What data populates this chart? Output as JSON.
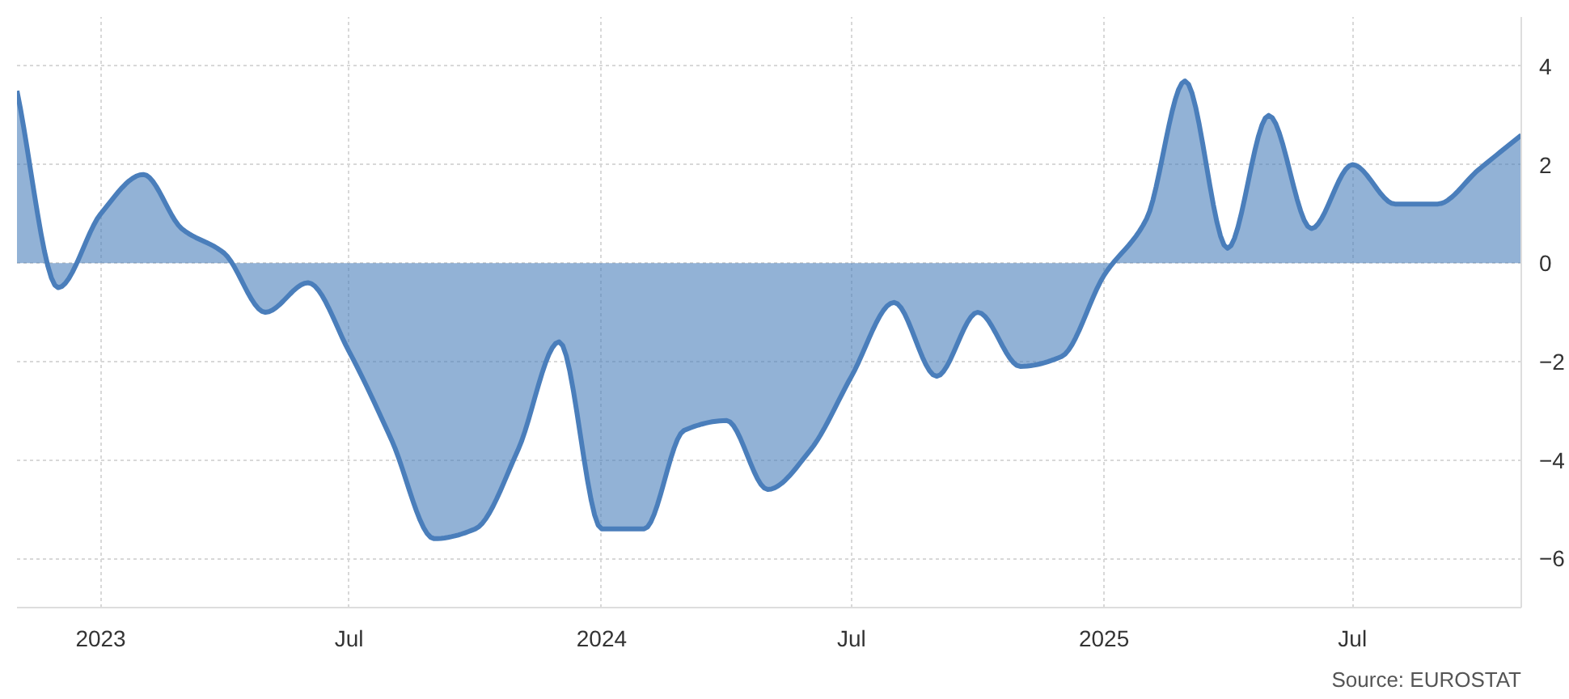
{
  "chart_data": {
    "type": "area",
    "x": [
      "2022-11",
      "2022-12",
      "2023-01",
      "2023-02",
      "2023-03",
      "2023-04",
      "2023-05",
      "2023-06",
      "2023-07",
      "2023-08",
      "2023-09",
      "2023-10",
      "2023-11",
      "2023-12",
      "2024-01",
      "2024-02",
      "2024-03",
      "2024-04",
      "2024-05",
      "2024-06",
      "2024-07",
      "2024-08",
      "2024-09",
      "2024-10",
      "2024-11",
      "2024-12",
      "2025-01",
      "2025-02",
      "2025-03",
      "2025-04",
      "2025-05",
      "2025-06",
      "2025-07",
      "2025-08",
      "2025-09",
      "2025-10",
      "2025-11"
    ],
    "series": [
      {
        "color": "#4a7ebb",
        "values": [
          3.5,
          -0.5,
          1.0,
          1.8,
          0.7,
          0.2,
          -1.0,
          -0.4,
          -1.8,
          -3.6,
          -5.6,
          -5.4,
          -3.8,
          -1.6,
          -5.4,
          -5.4,
          -3.4,
          -3.2,
          -4.6,
          -3.8,
          -2.3,
          -0.8,
          -2.3,
          -1.0,
          -2.1,
          -1.9,
          -0.25,
          0.9,
          3.7,
          0.3,
          3.0,
          0.7,
          2.0,
          1.2,
          1.2,
          1.9,
          2.6
        ]
      }
    ],
    "xlim": [
      "2022-11",
      "2025-11"
    ],
    "xticks": [
      {
        "value": "2023-01",
        "label": "2023"
      },
      {
        "value": "2023-07",
        "label": "Jul"
      },
      {
        "value": "2024-01",
        "label": "2024"
      },
      {
        "value": "2024-07",
        "label": "Jul"
      },
      {
        "value": "2025-01",
        "label": "2025"
      },
      {
        "value": "2025-07",
        "label": "Jul"
      }
    ],
    "ylim": [
      -7,
      5
    ],
    "yticks": [
      -6,
      -4,
      -2,
      0,
      2,
      4
    ],
    "grid": true,
    "annotations": [
      "Source: EUROSTAT"
    ]
  }
}
